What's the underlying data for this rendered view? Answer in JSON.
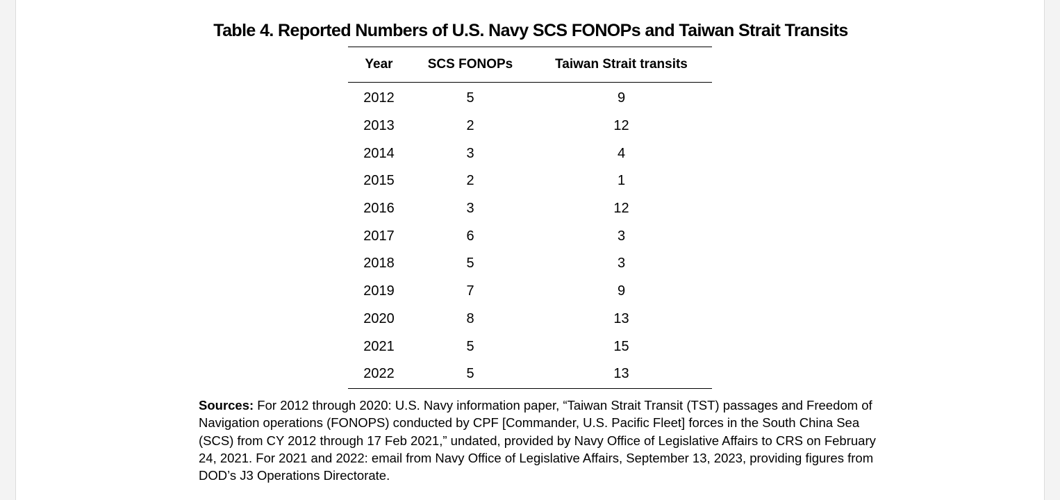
{
  "document": {
    "title": "Table 4. Reported Numbers of U.S. Navy SCS FONOPs and Taiwan Strait Transits",
    "columns": [
      "Year",
      "SCS FONOPs",
      "Taiwan Strait transits"
    ],
    "rows": [
      [
        "2012",
        "5",
        "9"
      ],
      [
        "2013",
        "2",
        "12"
      ],
      [
        "2014",
        "3",
        "4"
      ],
      [
        "2015",
        "2",
        "1"
      ],
      [
        "2016",
        "3",
        "12"
      ],
      [
        "2017",
        "6",
        "3"
      ],
      [
        "2018",
        "5",
        "3"
      ],
      [
        "2019",
        "7",
        "9"
      ],
      [
        "2020",
        "8",
        "13"
      ],
      [
        "2021",
        "5",
        "15"
      ],
      [
        "2022",
        "5",
        "13"
      ]
    ],
    "sources_label": "Sources:",
    "sources_text": " For 2012 through 2020: U.S. Navy information paper, “Taiwan Strait Transit (TST) passages and Freedom of Navigation operations (FONOPS) conducted by CPF [Commander, U.S. Pacific Fleet] forces in the South China Sea (SCS) from CY 2012 through 17 Feb 2021,” undated, provided by Navy Office of Legislative Affairs to CRS on February 24, 2021. For 2021 and 2022: email from Navy Office of Legislative Affairs, September 13, 2023, providing figures from DOD’s J3 Operations Directorate."
  }
}
